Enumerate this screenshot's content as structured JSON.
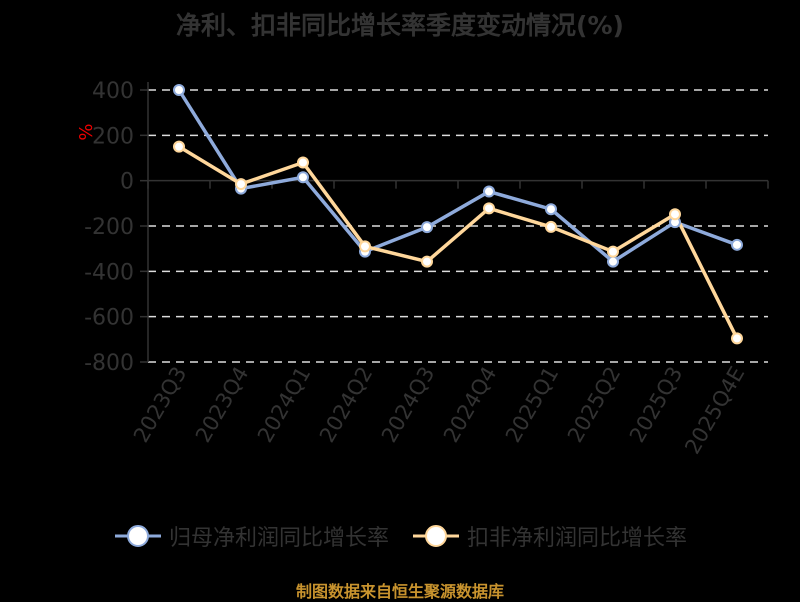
{
  "title": "净利、扣非同比增长率季度变动情况(%)",
  "footer": "制图数据来自恒生聚源数据库",
  "legend": [
    {
      "label": "归母净利润同比增长率",
      "color": "#8eaadb"
    },
    {
      "label": "扣非净利润同比增长率",
      "color": "#ffd79b"
    }
  ],
  "chart_data": {
    "type": "line",
    "title": "净利、扣非同比增长率季度变动情况(%)",
    "xlabel": "",
    "ylabel": "%",
    "ylim": [
      -800,
      400
    ],
    "yticks": [
      400,
      200,
      0,
      -200,
      -400,
      -600,
      -800
    ],
    "grid": true,
    "legend_position": "bottom",
    "categories": [
      "2023Q3",
      "2023Q4",
      "2024Q1",
      "2024Q2",
      "2024Q3",
      "2024Q4",
      "2025Q1",
      "2025Q2",
      "2025Q3",
      "2025Q4E"
    ],
    "series": [
      {
        "name": "归母净利润同比增长率",
        "color": "#8eaadb",
        "values": [
          400,
          -35,
          15,
          -313,
          -205,
          -48,
          -126,
          -357,
          -183,
          -283
        ]
      },
      {
        "name": "扣非净利润同比增长率",
        "color": "#ffd79b",
        "values": [
          150,
          -15,
          80,
          -290,
          -357,
          -122,
          -204,
          -313,
          -148,
          -696
        ]
      }
    ]
  }
}
